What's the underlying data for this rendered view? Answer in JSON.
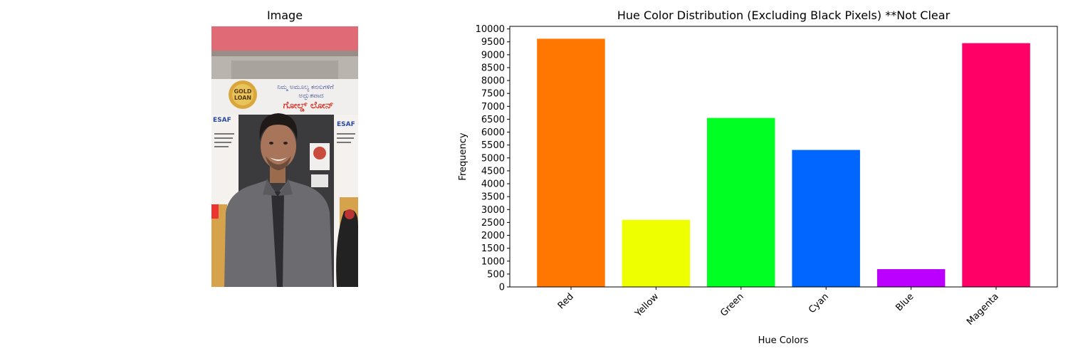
{
  "image_panel": {
    "title": "Image",
    "sign_text": {
      "top_line": "ನಿಮ್ಮ ಅಮೂಲ್ಯ ಕನಸುಗಳಿಗೆ",
      "second_line": "ಅದ್ಭುತವಾದ",
      "main_line": "ಗೋಲ್ಡ್ ಲೋನ್",
      "badge": "GOLD LOAN",
      "brand": "ESAF"
    }
  },
  "chart_data": {
    "type": "bar",
    "title": "Hue Color Distribution (Excluding Black Pixels) **Not Clear",
    "xlabel": "Hue Colors",
    "ylabel": "Frequency",
    "categories": [
      "Red",
      "Yellow",
      "Green",
      "Cyan",
      "Blue",
      "Magenta"
    ],
    "values": [
      9620,
      2600,
      6550,
      5310,
      690,
      9450
    ],
    "colors": [
      "#ff7700",
      "#eeff00",
      "#00ff22",
      "#0066ff",
      "#bb00ff",
      "#ff0066"
    ],
    "ylim": [
      0,
      10100
    ],
    "yticks": [
      0,
      500,
      1000,
      1500,
      2000,
      2500,
      3000,
      3500,
      4000,
      4500,
      5000,
      5500,
      6000,
      6500,
      7000,
      7500,
      8000,
      8500,
      9000,
      9500,
      10000
    ],
    "xtick_rotation": 45,
    "grid": false
  }
}
